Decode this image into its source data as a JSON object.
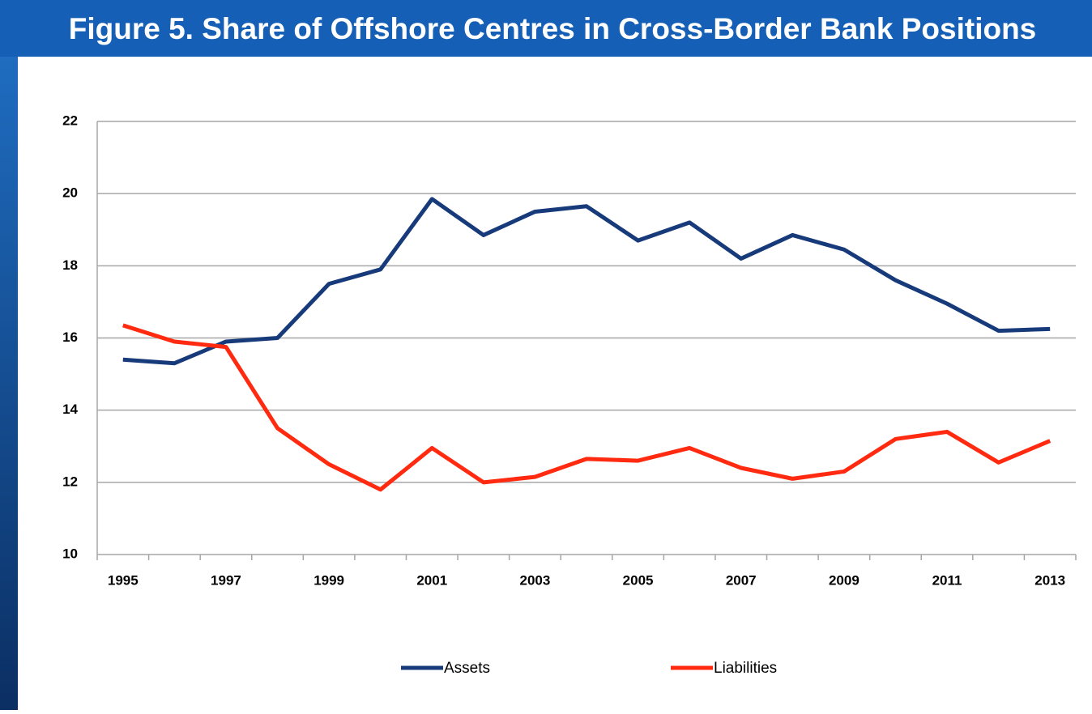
{
  "chart_data": {
    "type": "line",
    "title": "Figure 5.  Share of Offshore Centres in Cross-Border Bank Positions",
    "categories": [
      "1995",
      null,
      "1997",
      null,
      "1999",
      null,
      "2001",
      null,
      "2003",
      null,
      "2005",
      null,
      "2007",
      null,
      "2009",
      null,
      "2011",
      null,
      "2013"
    ],
    "series": [
      {
        "name": "Assets",
        "color": "#173a7a",
        "values": [
          15.4,
          15.3,
          15.9,
          16.0,
          17.5,
          17.9,
          19.85,
          18.85,
          19.5,
          19.65,
          18.7,
          19.2,
          18.2,
          18.85,
          18.45,
          17.6,
          16.95,
          16.2,
          16.25
        ]
      },
      {
        "name": "Liabilities",
        "color": "#ff2a0f",
        "values": [
          16.35,
          15.9,
          15.75,
          13.5,
          12.5,
          11.8,
          12.95,
          12.0,
          12.15,
          12.65,
          12.6,
          12.95,
          12.4,
          12.1,
          12.3,
          13.2,
          13.4,
          12.55,
          13.15
        ]
      }
    ],
    "ylim": [
      10,
      22
    ],
    "yticks": [
      10,
      12,
      14,
      16,
      18,
      20,
      22
    ],
    "grid": true,
    "legend": "bottom"
  }
}
